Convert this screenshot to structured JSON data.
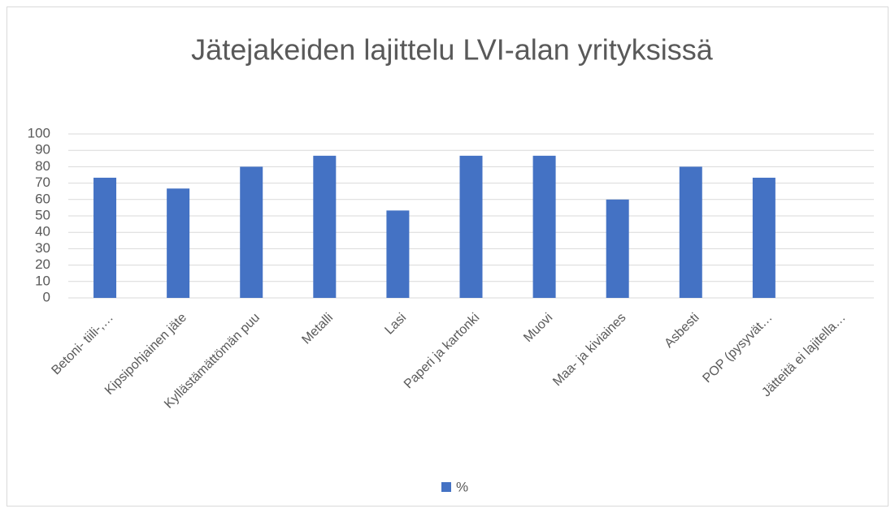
{
  "chart_data": {
    "type": "bar",
    "title": "Jätejakeiden lajittelu LVI-alan yrityksissä",
    "categories": [
      "Betoni- tiili-,…",
      "Kipsipohjainen jäte",
      "Kyllästämättömän puu",
      "Metalli",
      "Lasi",
      "Paperi ja kartonki",
      "Muovi",
      "Maa- ja kiviaines",
      "Asbesti",
      "POP (pysyvät…",
      "Jätteitä ei lajitella…"
    ],
    "series": [
      {
        "name": "%",
        "color": "#4472c4",
        "values": [
          73.3,
          66.7,
          80,
          86.7,
          53.3,
          86.7,
          86.7,
          60,
          80,
          73.3,
          0
        ]
      }
    ],
    "ylim": [
      0,
      100
    ],
    "yticks": [
      0,
      10,
      20,
      30,
      40,
      50,
      60,
      70,
      80,
      90,
      100
    ],
    "grid": true,
    "legend": "bottom"
  }
}
